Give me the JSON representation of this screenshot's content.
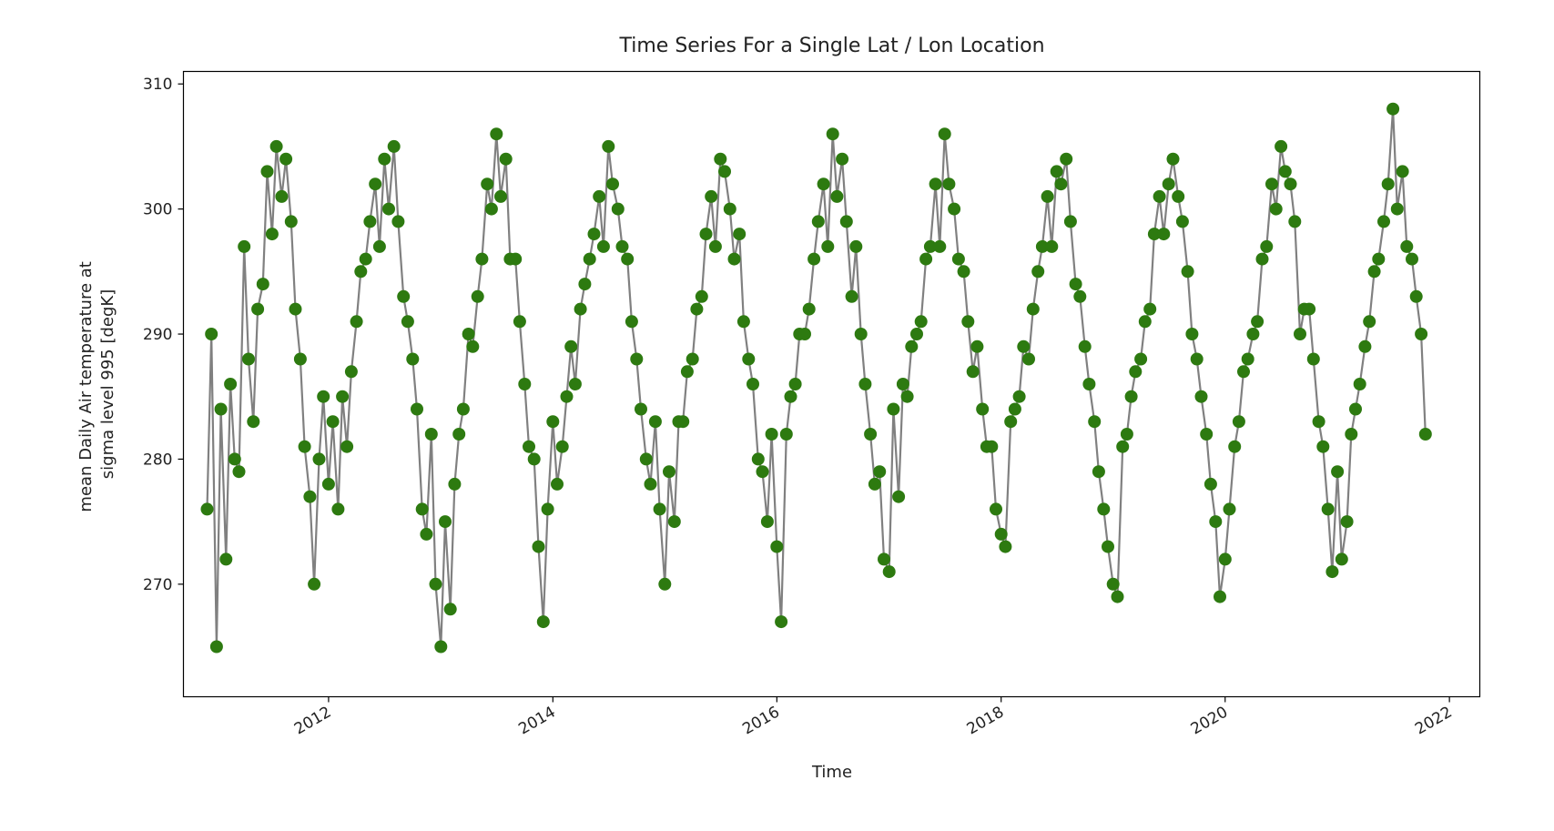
{
  "chart_data": {
    "type": "line",
    "title": "Time Series For a Single Lat / Lon Location",
    "xlabel": "Time",
    "ylabel_lines": [
      "mean Daily Air temperature at",
      "sigma level 995 [degK]"
    ],
    "x_unit": "date",
    "xlim": [
      "2010-09-15",
      "2022-04-10"
    ],
    "ylim": [
      261,
      311
    ],
    "x_ticks": [
      "2012",
      "2014",
      "2016",
      "2018",
      "2020",
      "2022"
    ],
    "y_ticks": [
      "270",
      "280",
      "290",
      "300",
      "310"
    ],
    "grid": false,
    "legend": "none",
    "series": [
      {
        "marker": "circle",
        "marker_color": "#2d7a10",
        "line_color": "#808080",
        "x": [
          "2010-12-01",
          "2010-12-15",
          "2011-01-01",
          "2011-01-15",
          "2011-02-01",
          "2011-02-15",
          "2011-03-01",
          "2011-03-15",
          "2011-04-01",
          "2011-04-15",
          "2011-05-01",
          "2011-05-15",
          "2011-06-01",
          "2011-06-15",
          "2011-07-01",
          "2011-07-15",
          "2011-08-01",
          "2011-08-15",
          "2011-09-01",
          "2011-09-15",
          "2011-10-01",
          "2011-10-15",
          "2011-11-01",
          "2011-11-15",
          "2011-12-01",
          "2011-12-15",
          "2012-01-01",
          "2012-01-15",
          "2012-02-01",
          "2012-02-15",
          "2012-03-01",
          "2012-03-15",
          "2012-04-01",
          "2012-04-15",
          "2012-05-01",
          "2012-05-15",
          "2012-06-01",
          "2012-06-15",
          "2012-07-01",
          "2012-07-15",
          "2012-08-01",
          "2012-08-15",
          "2012-09-01",
          "2012-09-15",
          "2012-10-01",
          "2012-10-15",
          "2012-11-01",
          "2012-11-15",
          "2012-12-01",
          "2012-12-15",
          "2013-01-01",
          "2013-01-15",
          "2013-02-01",
          "2013-02-15",
          "2013-03-01",
          "2013-03-15",
          "2013-04-01",
          "2013-04-15",
          "2013-05-01",
          "2013-05-15",
          "2013-06-01",
          "2013-06-15",
          "2013-07-01",
          "2013-07-15",
          "2013-08-01",
          "2013-08-15",
          "2013-09-01",
          "2013-09-15",
          "2013-10-01",
          "2013-10-15",
          "2013-11-01",
          "2013-11-15",
          "2013-12-01",
          "2013-12-15",
          "2014-01-01",
          "2014-01-15",
          "2014-02-01",
          "2014-02-15",
          "2014-03-01",
          "2014-03-15",
          "2014-04-01",
          "2014-04-15",
          "2014-05-01",
          "2014-05-15",
          "2014-06-01",
          "2014-06-15",
          "2014-07-01",
          "2014-07-15",
          "2014-08-01",
          "2014-08-15",
          "2014-09-01",
          "2014-09-15",
          "2014-10-01",
          "2014-10-15",
          "2014-11-01",
          "2014-11-15",
          "2014-12-01",
          "2014-12-15",
          "2015-01-01",
          "2015-01-15",
          "2015-02-01",
          "2015-02-15",
          "2015-03-01",
          "2015-03-15",
          "2015-04-01",
          "2015-04-15",
          "2015-05-01",
          "2015-05-15",
          "2015-06-01",
          "2015-06-15",
          "2015-07-01",
          "2015-07-15",
          "2015-08-01",
          "2015-08-15",
          "2015-09-01",
          "2015-09-15",
          "2015-10-01",
          "2015-10-15",
          "2015-11-01",
          "2015-11-15",
          "2015-12-01",
          "2015-12-15",
          "2016-01-01",
          "2016-01-15",
          "2016-02-01",
          "2016-02-15",
          "2016-03-01",
          "2016-03-15",
          "2016-04-01",
          "2016-04-15",
          "2016-05-01",
          "2016-05-15",
          "2016-06-01",
          "2016-06-15",
          "2016-07-01",
          "2016-07-15",
          "2016-08-01",
          "2016-08-15",
          "2016-09-01",
          "2016-09-15",
          "2016-10-01",
          "2016-10-15",
          "2016-11-01",
          "2016-11-15",
          "2016-12-01",
          "2016-12-15",
          "2017-01-01",
          "2017-01-15",
          "2017-02-01",
          "2017-02-15",
          "2017-03-01",
          "2017-03-15",
          "2017-04-01",
          "2017-04-15",
          "2017-05-01",
          "2017-05-15",
          "2017-06-01",
          "2017-06-15",
          "2017-07-01",
          "2017-07-15",
          "2017-08-01",
          "2017-08-15",
          "2017-09-01",
          "2017-09-15",
          "2017-10-01",
          "2017-10-15",
          "2017-11-01",
          "2017-11-15",
          "2017-12-01",
          "2017-12-15",
          "2018-01-01",
          "2018-01-15",
          "2018-02-01",
          "2018-02-15",
          "2018-03-01",
          "2018-03-15",
          "2018-04-01",
          "2018-04-15",
          "2018-05-01",
          "2018-05-15",
          "2018-06-01",
          "2018-06-15",
          "2018-07-01",
          "2018-07-15",
          "2018-08-01",
          "2018-08-15",
          "2018-09-01",
          "2018-09-15",
          "2018-10-01",
          "2018-10-15",
          "2018-11-01",
          "2018-11-15",
          "2018-12-01",
          "2018-12-15",
          "2019-01-01",
          "2019-01-15",
          "2019-02-01",
          "2019-02-15",
          "2019-03-01",
          "2019-03-15",
          "2019-04-01",
          "2019-04-15",
          "2019-05-01",
          "2019-05-15",
          "2019-06-01",
          "2019-06-15",
          "2019-07-01",
          "2019-07-15",
          "2019-08-01",
          "2019-08-15",
          "2019-09-01",
          "2019-09-15",
          "2019-10-01",
          "2019-10-15",
          "2019-11-01",
          "2019-11-15",
          "2019-12-01",
          "2019-12-15",
          "2020-01-01",
          "2020-01-15",
          "2020-02-01",
          "2020-02-15",
          "2020-03-01",
          "2020-03-15",
          "2020-04-01",
          "2020-04-15",
          "2020-05-01",
          "2020-05-15",
          "2020-06-01",
          "2020-06-15",
          "2020-07-01",
          "2020-07-15",
          "2020-08-01",
          "2020-08-15",
          "2020-09-01",
          "2020-09-15",
          "2020-10-01",
          "2020-10-15",
          "2020-11-01",
          "2020-11-15",
          "2020-12-01",
          "2020-12-15",
          "2021-01-01",
          "2021-01-15",
          "2021-02-01",
          "2021-02-15",
          "2021-03-01",
          "2021-03-15",
          "2021-04-01",
          "2021-04-15",
          "2021-05-01",
          "2021-05-15",
          "2021-06-01",
          "2021-06-15",
          "2021-07-01",
          "2021-07-15",
          "2021-08-01",
          "2021-08-15",
          "2021-09-01",
          "2021-09-15",
          "2021-10-01",
          "2021-10-15"
        ],
        "y": [
          276,
          290,
          265,
          284,
          272,
          286,
          280,
          279,
          297,
          288,
          283,
          292,
          294,
          303,
          298,
          305,
          301,
          304,
          299,
          292,
          288,
          281,
          277,
          270,
          280,
          285,
          278,
          283,
          276,
          285,
          281,
          287,
          291,
          295,
          296,
          299,
          302,
          297,
          304,
          300,
          305,
          299,
          293,
          291,
          288,
          284,
          276,
          274,
          282,
          270,
          265,
          275,
          268,
          278,
          282,
          284,
          290,
          289,
          293,
          296,
          302,
          300,
          306,
          301,
          304,
          296,
          296,
          291,
          286,
          281,
          280,
          273,
          267,
          276,
          283,
          278,
          281,
          285,
          289,
          286,
          292,
          294,
          296,
          298,
          301,
          297,
          305,
          302,
          300,
          297,
          296,
          291,
          288,
          284,
          280,
          278,
          283,
          276,
          270,
          279,
          275,
          283,
          283,
          287,
          288,
          292,
          293,
          298,
          301,
          297,
          304,
          303,
          300,
          296,
          298,
          291,
          288,
          286,
          280,
          279,
          275,
          282,
          273,
          267,
          282,
          285,
          286,
          290,
          290,
          292,
          296,
          299,
          302,
          297,
          306,
          301,
          304,
          299,
          293,
          297,
          290,
          286,
          282,
          278,
          279,
          272,
          271,
          284,
          277,
          286,
          285,
          289,
          290,
          291,
          296,
          297,
          302,
          297,
          306,
          302,
          300,
          296,
          295,
          291,
          287,
          289,
          284,
          281,
          281,
          276,
          274,
          273,
          283,
          284,
          285,
          289,
          288,
          292,
          295,
          297,
          301,
          297,
          303,
          302,
          304,
          299,
          294,
          293,
          289,
          286,
          283,
          279,
          276,
          273,
          270,
          269,
          281,
          282,
          285,
          287,
          288,
          291,
          292,
          298,
          301,
          298,
          302,
          304,
          301,
          299,
          295,
          290,
          288,
          285,
          282,
          278,
          275,
          269,
          272,
          276,
          281,
          283,
          287,
          288,
          290,
          291,
          296,
          297,
          302,
          300,
          305,
          303,
          302,
          299,
          290,
          292,
          292,
          288,
          283,
          281,
          276,
          271,
          279,
          272,
          275,
          282,
          284,
          286,
          289,
          291,
          295,
          296,
          299,
          302,
          308,
          300,
          303,
          297,
          296,
          293,
          290,
          282
        ]
      }
    ]
  }
}
